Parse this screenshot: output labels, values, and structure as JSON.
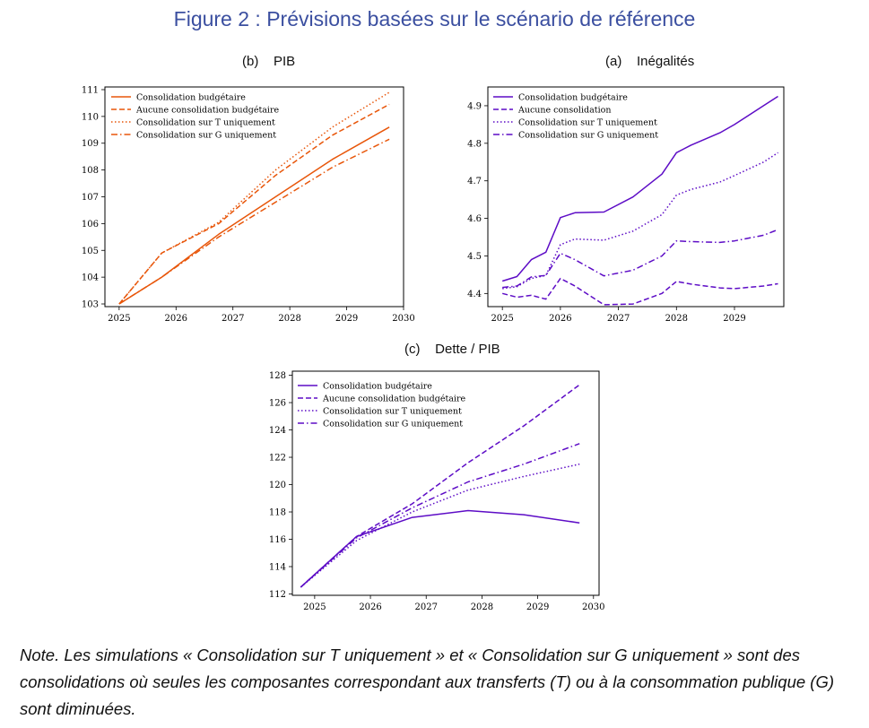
{
  "figure_title": "Figure 2 : Prévisions basées sur le scénario de référence",
  "note": "Note. Les simulations « Consolidation sur T uniquement » et « Consolidation sur G uniquement » sont des consolidations où seules les composantes correspondant aux transferts (T) ou à la consommation publique (G) sont diminuées.",
  "colors": {
    "title": "#3b4fa0",
    "orange": "#e8560a",
    "purple": "#5d0cc6"
  },
  "chart_data": [
    {
      "label": "(b)    PIB",
      "type": "line",
      "color": "#e8560a",
      "xlim": [
        2024.75,
        2030
      ],
      "ylim": [
        102.9,
        111.1
      ],
      "xticks": [
        2025,
        2026,
        2027,
        2028,
        2029,
        2030
      ],
      "yticks": [
        103,
        104,
        105,
        106,
        107,
        108,
        109,
        110,
        111
      ],
      "legend": "top-left",
      "x": [
        2025,
        2025.75,
        2026.75,
        2027.75,
        2028.75,
        2029.75
      ],
      "series": [
        {
          "name": "Consolidation budgétaire",
          "style": "solid",
          "values": [
            103.0,
            104.0,
            105.6,
            107.0,
            108.4,
            109.6
          ]
        },
        {
          "name": "Aucune consolidation budgétaire",
          "style": "dashed",
          "values": [
            103.0,
            104.9,
            106.0,
            107.8,
            109.3,
            110.45
          ]
        },
        {
          "name": "Consolidation sur T uniquement",
          "style": "dotted",
          "values": [
            103.0,
            104.9,
            106.05,
            108.0,
            109.6,
            110.9
          ]
        },
        {
          "name": "Consolidation sur G uniquement",
          "style": "dashdot",
          "values": [
            103.0,
            104.0,
            105.5,
            106.8,
            108.1,
            109.15
          ]
        }
      ]
    },
    {
      "label": "(a)    Inégalités",
      "type": "line",
      "color": "#5d0cc6",
      "xlim": [
        2024.75,
        2029.85
      ],
      "ylim": [
        4.365,
        4.95
      ],
      "xticks": [
        2025,
        2026,
        2027,
        2028,
        2029
      ],
      "yticks": [
        4.4,
        4.5,
        4.6,
        4.7,
        4.8,
        4.9
      ],
      "legend": "top-left",
      "x": [
        2025,
        2025.25,
        2025.5,
        2025.75,
        2026,
        2026.25,
        2026.75,
        2027.25,
        2027.75,
        2028,
        2028.25,
        2028.75,
        2029,
        2029.5,
        2029.75
      ],
      "series": [
        {
          "name": "Consolidation budgétaire",
          "style": "solid",
          "values": [
            4.433,
            4.445,
            4.49,
            4.51,
            4.602,
            4.615,
            4.617,
            4.657,
            4.718,
            4.775,
            4.795,
            4.828,
            4.85,
            4.9,
            4.925
          ]
        },
        {
          "name": "Aucune consolidation",
          "style": "dashed",
          "values": [
            4.4,
            4.39,
            4.395,
            4.385,
            4.44,
            4.42,
            4.37,
            4.372,
            4.4,
            4.432,
            4.425,
            4.415,
            4.413,
            4.42,
            4.426
          ]
        },
        {
          "name": "Consolidation sur T uniquement",
          "style": "dotted",
          "values": [
            4.413,
            4.418,
            4.44,
            4.448,
            4.53,
            4.545,
            4.542,
            4.566,
            4.61,
            4.662,
            4.677,
            4.697,
            4.714,
            4.75,
            4.775
          ]
        },
        {
          "name": "Consolidation sur G uniquement",
          "style": "dashdot",
          "values": [
            4.416,
            4.42,
            4.444,
            4.448,
            4.507,
            4.49,
            4.447,
            4.462,
            4.5,
            4.54,
            4.538,
            4.536,
            4.54,
            4.555,
            4.57
          ]
        }
      ]
    },
    {
      "label": "(c)    Dette / PIB",
      "type": "line",
      "color": "#5d0cc6",
      "xlim": [
        2024.6,
        2030.1
      ],
      "ylim": [
        111.9,
        128.3
      ],
      "xticks": [
        2025,
        2026,
        2027,
        2028,
        2029,
        2030
      ],
      "yticks": [
        112,
        114,
        116,
        118,
        120,
        122,
        124,
        126,
        128
      ],
      "legend": "top-left",
      "x": [
        2024.75,
        2025.75,
        2026.75,
        2027.75,
        2028.75,
        2029.75
      ],
      "series": [
        {
          "name": "Consolidation budgétaire",
          "style": "solid",
          "values": [
            112.5,
            116.2,
            117.6,
            118.1,
            117.8,
            117.2
          ]
        },
        {
          "name": "Aucune consolidation budgétaire",
          "style": "dashed",
          "values": [
            112.5,
            116.2,
            118.6,
            121.6,
            124.3,
            127.3
          ]
        },
        {
          "name": "Consolidation sur T uniquement",
          "style": "dotted",
          "values": [
            112.5,
            115.9,
            118.0,
            119.6,
            120.6,
            121.5
          ]
        },
        {
          "name": "Consolidation sur G uniquement",
          "style": "dashdot",
          "values": [
            112.5,
            116.1,
            118.3,
            120.2,
            121.5,
            123.0
          ]
        }
      ]
    }
  ]
}
